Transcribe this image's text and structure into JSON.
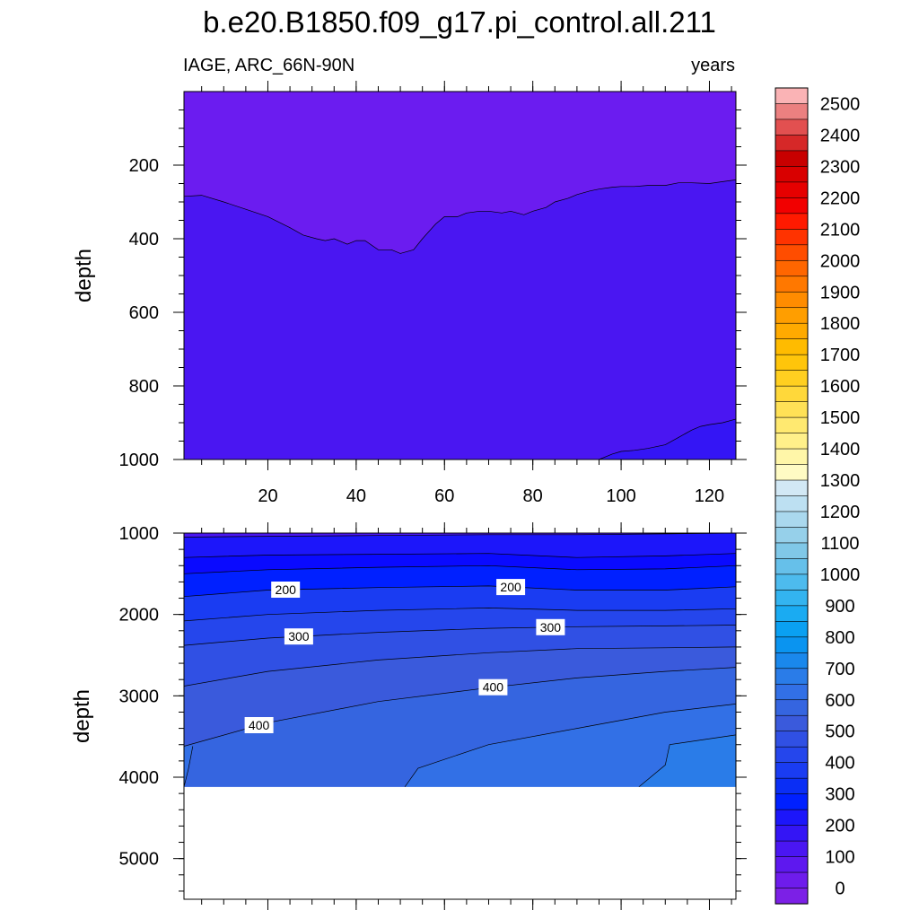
{
  "title": "b.e20.B1850.f09_g17.pi_control.all.211",
  "subtitle_left": "IAGE, ARC_66N-90N",
  "subtitle_right": "years",
  "chart_data": [
    {
      "type": "contour",
      "panel": "upper",
      "ylabel": "depth",
      "xlim": [
        1,
        126
      ],
      "ylim": [
        0,
        1000
      ],
      "y_reversed": true,
      "xticks": [
        20,
        40,
        60,
        80,
        100,
        120
      ],
      "yticks": [
        200,
        400,
        600,
        800,
        1000
      ],
      "contour_levels": [
        {
          "level": 50,
          "label": "",
          "x": [
            1,
            5,
            10,
            15,
            20,
            25,
            28,
            31,
            33,
            35,
            38,
            40,
            42,
            45,
            48,
            50,
            53,
            55,
            58,
            60,
            63,
            65,
            68,
            70,
            73,
            75,
            78,
            80,
            83,
            85,
            88,
            90,
            93,
            95,
            98,
            100,
            103,
            106,
            110,
            113,
            116,
            120,
            123,
            126
          ],
          "y": [
            285,
            282,
            300,
            320,
            340,
            370,
            390,
            400,
            405,
            400,
            415,
            405,
            405,
            430,
            430,
            440,
            430,
            400,
            360,
            340,
            340,
            330,
            325,
            325,
            330,
            325,
            335,
            325,
            315,
            300,
            290,
            280,
            270,
            265,
            260,
            258,
            258,
            255,
            255,
            248,
            248,
            250,
            245,
            240
          ]
        },
        {
          "level": 100,
          "label": "",
          "x": [
            95,
            98,
            100,
            103,
            106,
            110,
            113,
            116,
            118,
            120,
            123,
            126
          ],
          "y": [
            1000,
            985,
            978,
            975,
            970,
            960,
            940,
            920,
            910,
            905,
            900,
            890
          ]
        }
      ]
    },
    {
      "type": "contour",
      "panel": "lower",
      "ylabel": "depth",
      "xlim": [
        1,
        126
      ],
      "ylim": [
        1000,
        5500
      ],
      "y_reversed": true,
      "yticks": [
        1000,
        2000,
        3000,
        4000,
        5000
      ],
      "data_bottom_depth": 4120,
      "contour_levels": [
        {
          "level": 50,
          "label": "",
          "x": [
            1,
            20,
            45,
            70,
            90,
            110,
            126
          ],
          "y": [
            1050,
            1040,
            1030,
            1020,
            1020,
            1010,
            1000
          ]
        },
        {
          "level": 100,
          "label": "",
          "x": [
            1,
            20,
            45,
            70,
            90,
            110,
            126
          ],
          "y": [
            1300,
            1270,
            1260,
            1250,
            1300,
            1280,
            1250
          ]
        },
        {
          "level": 150,
          "label": "",
          "x": [
            1,
            20,
            45,
            70,
            90,
            110,
            126
          ],
          "y": [
            1500,
            1450,
            1420,
            1400,
            1450,
            1440,
            1400
          ]
        },
        {
          "level": 200,
          "label": "200",
          "x": [
            1,
            20,
            45,
            70,
            90,
            110,
            126
          ],
          "y": [
            1780,
            1700,
            1670,
            1650,
            1700,
            1700,
            1660
          ]
        },
        {
          "level": 250,
          "label": "",
          "x": [
            1,
            20,
            45,
            70,
            90,
            110,
            126
          ],
          "y": [
            2080,
            2000,
            1950,
            1920,
            1950,
            1950,
            1930
          ]
        },
        {
          "level": 300,
          "label": "300",
          "x": [
            1,
            20,
            45,
            70,
            90,
            110,
            126
          ],
          "y": [
            2380,
            2290,
            2220,
            2170,
            2150,
            2140,
            2130
          ]
        },
        {
          "level": 350,
          "label": "",
          "x": [
            1,
            20,
            45,
            70,
            90,
            110,
            126
          ],
          "y": [
            2880,
            2700,
            2560,
            2470,
            2420,
            2410,
            2400
          ]
        },
        {
          "level": 400,
          "label": "400",
          "x": [
            1,
            20,
            45,
            70,
            90,
            110,
            126
          ],
          "y": [
            3620,
            3330,
            3070,
            2900,
            2780,
            2700,
            2650
          ]
        },
        {
          "level": 450,
          "label": "",
          "x": [
            51,
            54,
            70,
            90,
            110,
            126
          ],
          "y": [
            4120,
            3890,
            3600,
            3400,
            3200,
            3100
          ]
        },
        {
          "level": 450,
          "label": "",
          "x": [
            1,
            2,
            3
          ],
          "y": [
            4120,
            3900,
            3620
          ]
        },
        {
          "level": 500,
          "label": "",
          "x": [
            104,
            110,
            111,
            126
          ],
          "y": [
            4120,
            3850,
            3600,
            3480
          ]
        }
      ]
    }
  ],
  "colorbar": {
    "labels": [
      "2500",
      "2400",
      "2300",
      "2200",
      "2100",
      "2000",
      "1900",
      "1800",
      "1700",
      "1600",
      "1500",
      "1400",
      "1300",
      "1200",
      "1100",
      "1000",
      "900",
      "800",
      "700",
      "600",
      "500",
      "400",
      "300",
      "200",
      "100",
      "0"
    ],
    "colors_top_to_bottom": [
      "#FAB3B5",
      "#EB8080",
      "#E25050",
      "#D62828",
      "#C80000",
      "#D90000",
      "#E60000",
      "#F20000",
      "#FF1A00",
      "#FF3300",
      "#FF4D00",
      "#FF6600",
      "#FF7800",
      "#FF8C00",
      "#FF9E00",
      "#FFAA00",
      "#FFBB00",
      "#FFC50A",
      "#FFCF20",
      "#FFD83A",
      "#FFE156",
      "#FFE970",
      "#FFF08A",
      "#FFF6A8",
      "#FFFBC4",
      "#D2E8F5",
      "#BDE0F2",
      "#AAD8EE",
      "#96D0EA",
      "#80C8E8",
      "#66C0EA",
      "#4DBBEE",
      "#33B4F0",
      "#1AABF2",
      "#0AA0F2",
      "#0A94F0",
      "#1A88EC",
      "#2A7CE8",
      "#3270E6",
      "#3565E0",
      "#3A5ADC",
      "#3050E4",
      "#2546EC",
      "#1A3CF2",
      "#0A2EF5",
      "#0020FF",
      "#1C16FA",
      "#3415F5",
      "#4A16F2",
      "#5E18EF",
      "#6E1CEC",
      "#7C20E6"
    ]
  }
}
